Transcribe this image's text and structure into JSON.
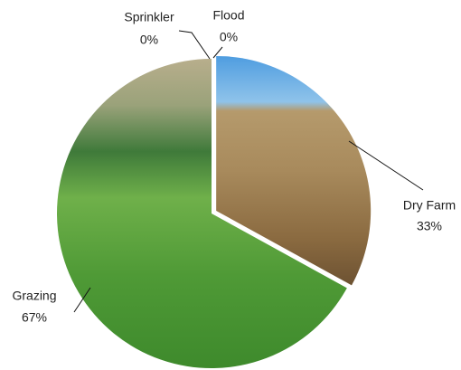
{
  "chart_data": {
    "type": "pie",
    "categories": [
      "Flood",
      "Dry Farm",
      "Grazing",
      "Sprinkler"
    ],
    "values": [
      0,
      33,
      67,
      0
    ],
    "value_labels": [
      "0%",
      "33%",
      "67%",
      "0%"
    ]
  }
}
